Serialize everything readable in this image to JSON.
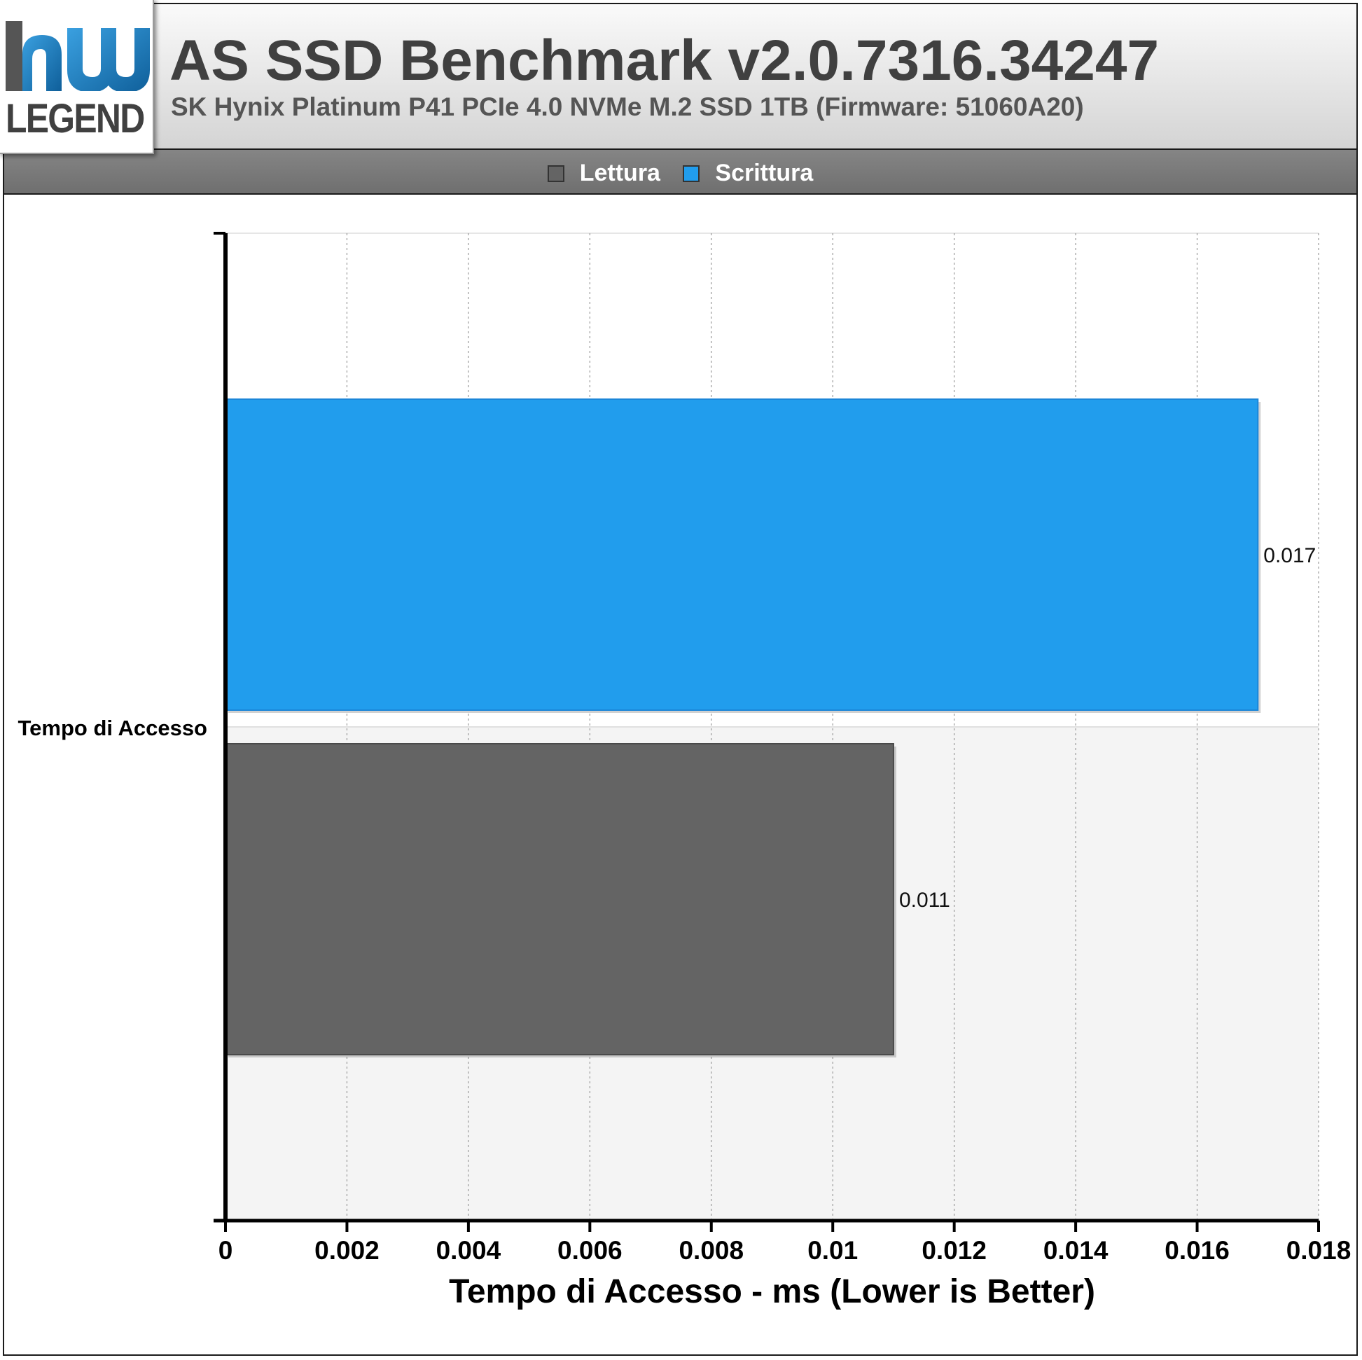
{
  "header": {
    "logo_text": "LEGEND",
    "title": "AS SSD Benchmark v2.0.7316.34247",
    "subtitle": "SK Hynix Platinum P41 PCIe 4.0 NVMe M.2 SSD 1TB (Firmware: 51060A20)"
  },
  "legend": [
    {
      "label": "Lettura",
      "color": "#646464"
    },
    {
      "label": "Scrittura",
      "color": "#219ded"
    }
  ],
  "chart_data": {
    "type": "bar",
    "orientation": "horizontal",
    "categories": [
      "Tempo di Accesso"
    ],
    "series": [
      {
        "name": "Scrittura",
        "color": "#219ded",
        "values": [
          0.017
        ]
      },
      {
        "name": "Lettura",
        "color": "#646464",
        "values": [
          0.011
        ]
      }
    ],
    "data_labels": [
      "0.017",
      "0.011"
    ],
    "xlabel": "Tempo di Accesso - ms (Lower is Better)",
    "ylabel": "",
    "xlim": [
      0,
      0.018
    ],
    "xticks": [
      "0",
      "0.002",
      "0.004",
      "0.006",
      "0.008",
      "0.01",
      "0.012",
      "0.014",
      "0.016",
      "0.018"
    ],
    "grid": true,
    "legend_position": "top"
  }
}
